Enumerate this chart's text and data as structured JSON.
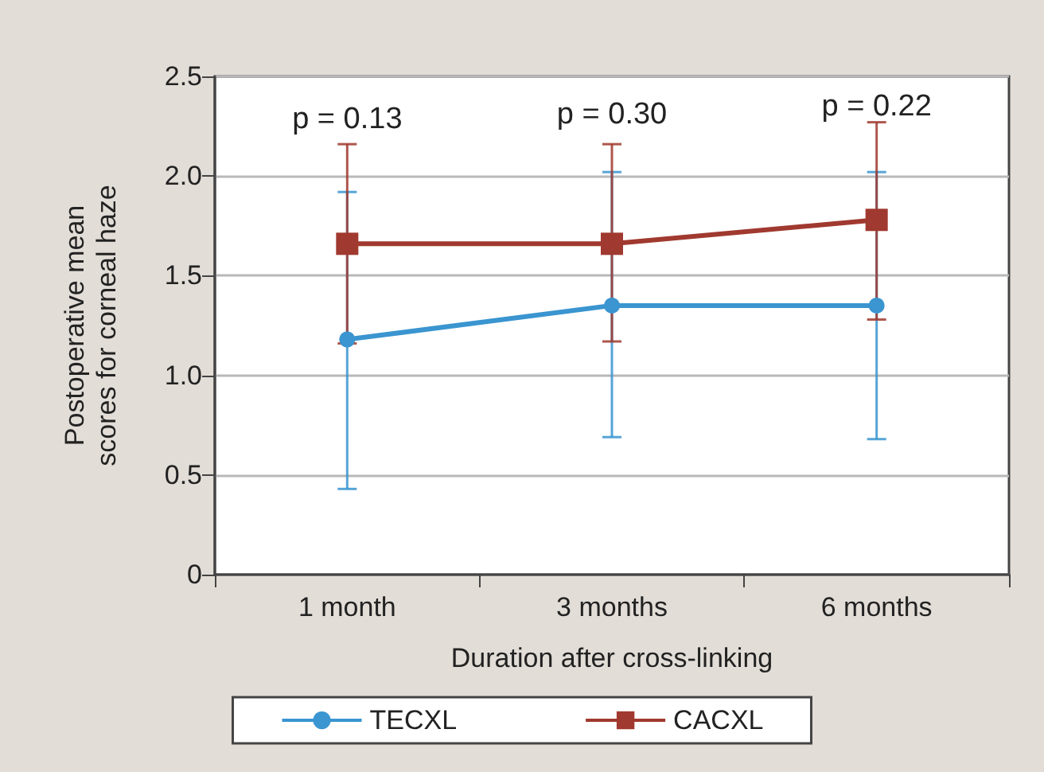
{
  "chart_data": {
    "type": "line",
    "xlabel": "Duration after cross-linking",
    "ylabel": "Postoperative mean scores for corneal haze",
    "categories": [
      "1 month",
      "3 months",
      "6 months"
    ],
    "series": [
      {
        "name": "TECXL",
        "color": "#3a95d0",
        "marker": "circle",
        "values": [
          1.18,
          1.35,
          1.35
        ],
        "errors": [
          [
            0.43,
            1.92
          ],
          [
            0.69,
            2.02
          ],
          [
            0.68,
            2.02
          ]
        ]
      },
      {
        "name": "CACXL",
        "color": "#a0392f",
        "marker": "square",
        "values": [
          1.66,
          1.66,
          1.78
        ],
        "errors": [
          [
            1.16,
            2.16
          ],
          [
            1.17,
            2.16
          ],
          [
            1.28,
            2.27
          ]
        ]
      }
    ],
    "annotations": [
      "p = 0.13",
      "p = 0.30",
      "p = 0.22"
    ],
    "ylim": [
      0,
      2.5
    ],
    "yticks": [
      0,
      0.5,
      {
        "value": 1,
        "label": "1.0"
      },
      1.5,
      {
        "value": 2,
        "label": "2.0"
      },
      2.5
    ],
    "grid": "y",
    "legend": "bottom"
  }
}
